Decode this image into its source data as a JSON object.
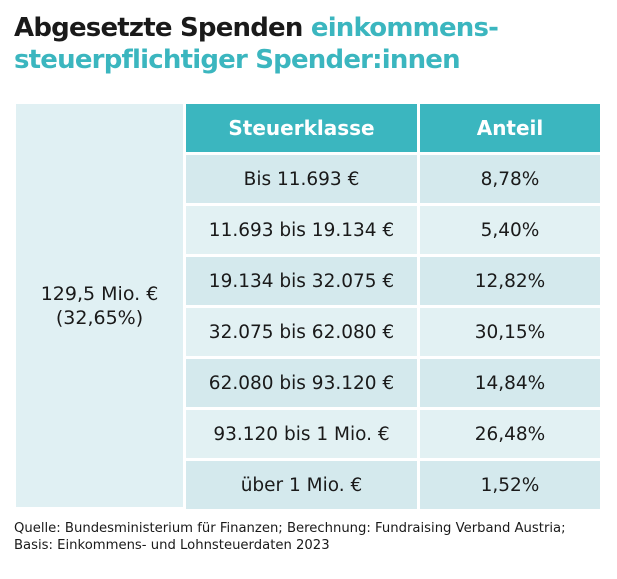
{
  "title": {
    "part1": "Abgesetzte Spenden ",
    "part2": "einkommens-steuerpflichtiger Spender:innen"
  },
  "total": {
    "amount": "129,5 Mio. €",
    "share": "(32,65%)"
  },
  "chart_data": {
    "type": "table",
    "columns": [
      "Steuerklasse",
      "Anteil"
    ],
    "rows": [
      [
        "Bis 11.693 €",
        "8,78%"
      ],
      [
        "11.693 bis 19.134 €",
        "5,40%"
      ],
      [
        "19.134 bis 32.075 €",
        "12,82%"
      ],
      [
        "32.075 bis 62.080 €",
        "30,15%"
      ],
      [
        "62.080 bis 93.120 €",
        "14,84%"
      ],
      [
        "93.120 bis 1 Mio. €",
        "26,48%"
      ],
      [
        "über 1 Mio. €",
        "1,52%"
      ]
    ]
  },
  "source": "Quelle: Bundesministerium für Finanzen; Berechnung: Fundraising Verband Austria; Basis: Einkommens- und Lohnsteuerdaten 2023",
  "colors": {
    "accent": "#3bb6bf",
    "row_a": "#d4e9ed",
    "row_b": "#e2f1f3"
  }
}
